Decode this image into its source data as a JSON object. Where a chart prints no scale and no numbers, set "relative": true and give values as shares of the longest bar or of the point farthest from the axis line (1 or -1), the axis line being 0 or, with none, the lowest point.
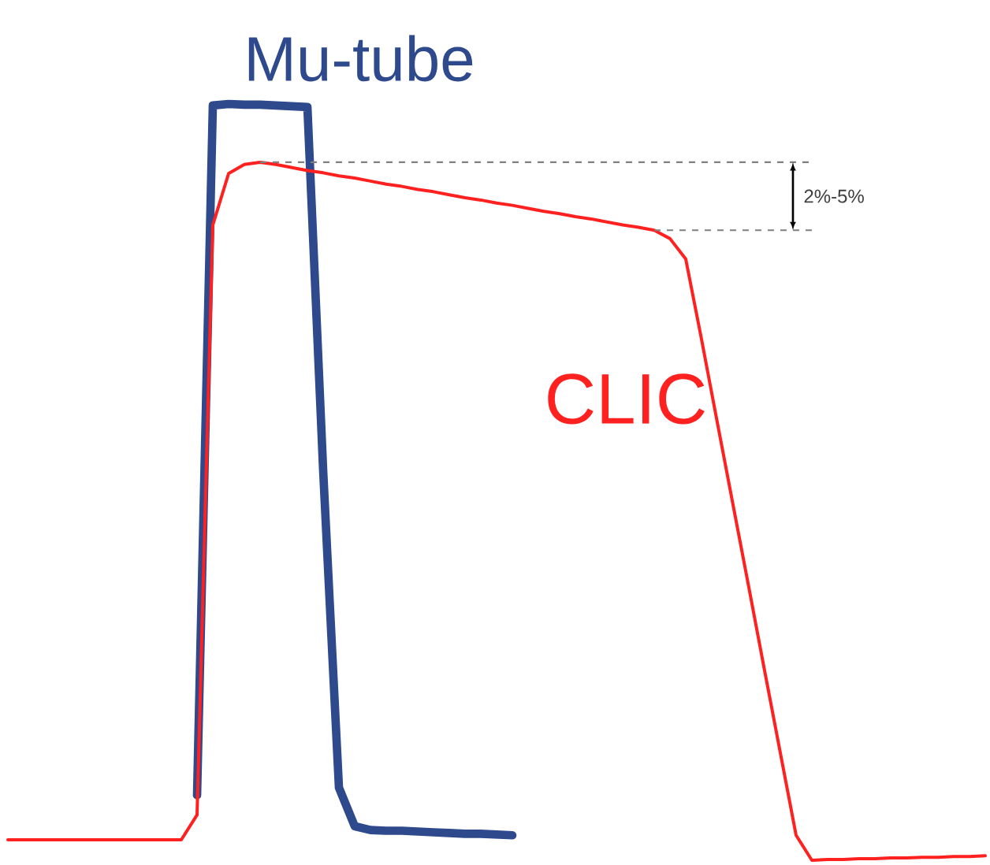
{
  "chart_data": {
    "type": "line",
    "relative": true,
    "annotations": [
      "2%-5%"
    ],
    "ref_lines": [
      {
        "axis": "y",
        "value": 0.923,
        "color": "#808080",
        "line_style": "dashed"
      },
      {
        "axis": "y",
        "value": 0.833,
        "color": "#808080",
        "line_style": "dashed"
      }
    ],
    "categories": [
      null,
      null,
      null,
      null,
      null,
      null,
      null,
      null,
      null,
      null,
      null,
      null,
      null,
      null,
      null,
      null,
      null,
      null,
      null,
      null,
      null,
      null,
      null,
      null,
      null,
      null,
      null,
      null,
      null,
      null,
      null,
      null,
      null,
      null,
      null,
      null,
      null,
      null,
      null,
      null,
      null,
      null,
      null,
      null,
      null,
      null,
      null,
      null,
      null,
      null,
      null,
      null,
      null,
      null,
      null,
      null,
      null,
      null,
      null,
      null,
      null,
      null,
      null
    ],
    "series": [
      {
        "name": "Mu-tube",
        "color": "#2e4a8c",
        "values": [
          null,
          null,
          null,
          null,
          null,
          null,
          null,
          null,
          null,
          null,
          null,
          null,
          0.086,
          0.998,
          1.0,
          0.999,
          0.999,
          0.998,
          0.997,
          0.996,
          0.515,
          0.096,
          0.045,
          0.04,
          0.039,
          0.039,
          0.038,
          0.037,
          0.036,
          0.035,
          0.035,
          0.034,
          0.033,
          null,
          null,
          null,
          null,
          null,
          null,
          null,
          null,
          null,
          null,
          null,
          null,
          null,
          null,
          null,
          null,
          null,
          null,
          null,
          null,
          null,
          null,
          null,
          null,
          null,
          null,
          null,
          null,
          null,
          null
        ]
      },
      {
        "name": "CLIC",
        "color": "#ff2020",
        "values": [
          0.027,
          0.027,
          0.027,
          0.027,
          0.027,
          0.027,
          0.027,
          0.027,
          0.027,
          0.027,
          0.027,
          0.027,
          0.06,
          0.84,
          0.908,
          0.92,
          0.923,
          0.92,
          0.916,
          0.912,
          0.909,
          0.905,
          0.902,
          0.898,
          0.894,
          0.891,
          0.887,
          0.884,
          0.88,
          0.876,
          0.873,
          0.869,
          0.866,
          0.862,
          0.858,
          0.855,
          0.851,
          0.848,
          0.844,
          0.84,
          0.837,
          0.833,
          0.822,
          0.795,
          0.689,
          0.579,
          0.47,
          0.361,
          0.251,
          0.142,
          0.033,
          0,
          0.001,
          0.001,
          0.002,
          0.002,
          0.003,
          0.003,
          0.004,
          0.004,
          0.005,
          0.005,
          0.006
        ]
      }
    ]
  }
}
